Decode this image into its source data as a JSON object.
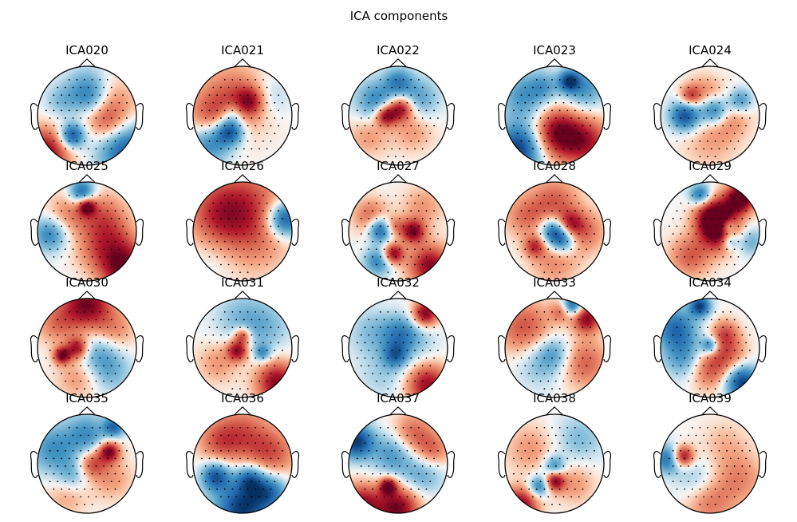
{
  "chart_data": {
    "type": "heatmap",
    "title": "ICA components",
    "components": [
      {
        "label": "ICA020",
        "blobs": [
          [
            -0.85,
            -0.75,
            0.9,
            0.35
          ],
          [
            0.8,
            -0.7,
            -0.8,
            0.4
          ],
          [
            -0.3,
            -0.4,
            -0.9,
            0.18
          ],
          [
            0.0,
            0.6,
            -0.4,
            0.3
          ],
          [
            0.1,
            0.3,
            -0.45,
            0.25
          ],
          [
            0.5,
            0.2,
            0.35,
            0.4
          ],
          [
            0.3,
            0.0,
            0.25,
            0.3
          ],
          [
            -0.5,
            0.3,
            -0.3,
            0.25
          ],
          [
            0.45,
            -0.2,
            0.2,
            0.25
          ]
        ]
      },
      {
        "label": "ICA021",
        "blobs": [
          [
            -0.2,
            0.3,
            0.55,
            0.5
          ],
          [
            0.15,
            0.3,
            0.6,
            0.2
          ],
          [
            -0.25,
            -0.3,
            -0.95,
            0.2
          ],
          [
            -0.65,
            -0.55,
            -0.6,
            0.3
          ],
          [
            -0.2,
            0.05,
            -0.35,
            0.15
          ],
          [
            -0.7,
            0.0,
            0.3,
            0.3
          ],
          [
            0.55,
            0.4,
            -0.25,
            0.3
          ]
        ]
      },
      {
        "label": "ICA022",
        "blobs": [
          [
            0.05,
            0.15,
            0.95,
            0.18
          ],
          [
            -0.25,
            0.0,
            0.9,
            0.15
          ],
          [
            -0.45,
            0.3,
            -0.55,
            0.3
          ],
          [
            0.4,
            0.35,
            -0.45,
            0.3
          ],
          [
            0.0,
            0.7,
            -0.5,
            0.2
          ],
          [
            0.3,
            -0.3,
            0.3,
            0.3
          ],
          [
            -0.6,
            -0.4,
            0.3,
            0.3
          ]
        ]
      },
      {
        "label": "ICA023",
        "blobs": [
          [
            0.05,
            -0.35,
            0.95,
            0.35
          ],
          [
            -0.7,
            -0.65,
            -0.95,
            0.35
          ],
          [
            0.65,
            -0.55,
            0.7,
            0.35
          ],
          [
            -0.6,
            0.4,
            -0.5,
            0.35
          ],
          [
            0.6,
            0.55,
            -0.5,
            0.3
          ],
          [
            0.3,
            0.7,
            -0.8,
            0.15
          ],
          [
            -0.2,
            0.6,
            -0.3,
            0.2
          ]
        ]
      },
      {
        "label": "ICA024",
        "blobs": [
          [
            -0.5,
            0.0,
            -0.9,
            0.22
          ],
          [
            0.1,
            0.1,
            -0.8,
            0.2
          ],
          [
            0.6,
            0.3,
            -0.6,
            0.18
          ],
          [
            -0.4,
            0.4,
            0.6,
            0.15
          ],
          [
            0.4,
            0.0,
            0.35,
            0.3
          ],
          [
            0.0,
            -0.5,
            0.25,
            0.4
          ],
          [
            -0.1,
            0.5,
            0.3,
            0.25
          ]
        ]
      },
      {
        "label": "ICA025",
        "blobs": [
          [
            0.75,
            -0.75,
            0.95,
            0.35
          ],
          [
            0.0,
            0.5,
            0.9,
            0.12
          ],
          [
            -0.1,
            0.8,
            -0.8,
            0.18
          ],
          [
            -0.75,
            -0.05,
            -0.6,
            0.25
          ],
          [
            0.3,
            0.3,
            0.45,
            0.35
          ],
          [
            -0.4,
            0.35,
            0.35,
            0.3
          ],
          [
            0.5,
            -0.2,
            0.4,
            0.35
          ],
          [
            0.1,
            -0.4,
            0.2,
            0.3
          ]
        ]
      },
      {
        "label": "ICA026",
        "blobs": [
          [
            0.85,
            0.25,
            -0.95,
            0.25
          ],
          [
            0.0,
            0.5,
            0.6,
            0.6
          ],
          [
            -0.5,
            0.3,
            0.4,
            0.45
          ],
          [
            0.3,
            -0.3,
            0.2,
            0.5
          ],
          [
            -0.6,
            -0.5,
            -0.1,
            0.4
          ]
        ]
      },
      {
        "label": "ICA027",
        "blobs": [
          [
            -0.35,
            0.05,
            -0.95,
            0.18
          ],
          [
            0.3,
            0.0,
            0.9,
            0.17
          ],
          [
            -0.1,
            -0.45,
            0.95,
            0.15
          ],
          [
            -0.1,
            0.1,
            0.5,
            0.15
          ],
          [
            0.65,
            -0.7,
            0.9,
            0.3
          ],
          [
            -0.55,
            0.3,
            0.5,
            0.25
          ],
          [
            0.5,
            0.5,
            0.3,
            0.3
          ],
          [
            -0.4,
            -0.6,
            -0.6,
            0.2
          ]
        ]
      },
      {
        "label": "ICA028",
        "blobs": [
          [
            0.0,
            0.0,
            -0.95,
            0.2
          ],
          [
            0.2,
            -0.2,
            -0.6,
            0.18
          ],
          [
            0.3,
            0.15,
            0.6,
            0.18
          ],
          [
            -0.4,
            -0.3,
            0.6,
            0.15
          ],
          [
            0.0,
            0.6,
            0.5,
            0.35
          ],
          [
            -0.6,
            0.3,
            0.4,
            0.3
          ],
          [
            0.6,
            0.0,
            0.45,
            0.3
          ],
          [
            0.0,
            -0.6,
            0.35,
            0.35
          ]
        ]
      },
      {
        "label": "ICA029",
        "blobs": [
          [
            0.2,
            0.0,
            0.95,
            0.28
          ],
          [
            0.05,
            0.3,
            0.9,
            0.25
          ],
          [
            0.65,
            0.7,
            0.95,
            0.2
          ],
          [
            0.35,
            0.1,
            -0.7,
            0.12
          ],
          [
            0.4,
            -0.2,
            -0.6,
            0.12
          ],
          [
            -0.4,
            -0.5,
            0.5,
            0.3
          ],
          [
            -0.2,
            0.75,
            -0.7,
            0.15
          ],
          [
            0.8,
            -0.2,
            -0.4,
            0.2
          ],
          [
            0.45,
            0.55,
            0.4,
            0.25
          ]
        ]
      },
      {
        "label": "ICA030",
        "blobs": [
          [
            0.0,
            0.9,
            0.95,
            0.35
          ],
          [
            -0.2,
            0.0,
            0.8,
            0.15
          ],
          [
            -0.5,
            -0.15,
            0.9,
            0.12
          ],
          [
            0.25,
            -0.1,
            -0.4,
            0.3
          ],
          [
            -0.6,
            0.5,
            0.4,
            0.3
          ],
          [
            0.55,
            0.35,
            0.35,
            0.3
          ],
          [
            0.5,
            -0.5,
            -0.3,
            0.3
          ],
          [
            -0.2,
            -0.6,
            0.3,
            0.3
          ]
        ]
      },
      {
        "label": "ICA031",
        "blobs": [
          [
            -0.1,
            -0.05,
            0.9,
            0.15
          ],
          [
            0.0,
            0.25,
            0.7,
            0.12
          ],
          [
            0.7,
            -0.7,
            0.9,
            0.3
          ],
          [
            0.4,
            -0.1,
            -0.5,
            0.12
          ],
          [
            0.0,
            0.6,
            -0.3,
            0.4
          ],
          [
            -0.5,
            -0.3,
            0.3,
            0.3
          ],
          [
            0.5,
            0.4,
            -0.25,
            0.35
          ]
        ]
      },
      {
        "label": "ICA032",
        "blobs": [
          [
            0.55,
            0.7,
            0.95,
            0.18
          ],
          [
            0.6,
            -0.75,
            0.85,
            0.3
          ],
          [
            0.05,
            0.3,
            -0.5,
            0.25
          ],
          [
            -0.05,
            -0.15,
            -0.6,
            0.18
          ],
          [
            -0.5,
            0.3,
            -0.3,
            0.35
          ],
          [
            0.4,
            0.1,
            -0.2,
            0.3
          ],
          [
            -0.3,
            -0.55,
            -0.2,
            0.35
          ]
        ]
      },
      {
        "label": "ICA033",
        "blobs": [
          [
            0.35,
            0.85,
            -0.9,
            0.15
          ],
          [
            0.65,
            0.6,
            0.9,
            0.2
          ],
          [
            -0.6,
            0.4,
            0.55,
            0.4
          ],
          [
            0.6,
            -0.3,
            0.5,
            0.35
          ],
          [
            -0.3,
            -0.3,
            -0.3,
            0.35
          ],
          [
            0.0,
            -0.1,
            -0.4,
            0.25
          ],
          [
            0.15,
            0.75,
            0.5,
            0.15
          ]
        ]
      },
      {
        "label": "ICA034",
        "blobs": [
          [
            0.65,
            -0.7,
            -0.95,
            0.25
          ],
          [
            -0.2,
            0.85,
            -0.9,
            0.15
          ],
          [
            -0.7,
            0.4,
            -0.7,
            0.3
          ],
          [
            0.0,
            -0.4,
            0.6,
            0.3
          ],
          [
            0.3,
            0.3,
            0.5,
            0.2
          ],
          [
            0.0,
            0.05,
            -0.7,
            0.12
          ],
          [
            -0.5,
            -0.2,
            -0.5,
            0.3
          ],
          [
            0.4,
            -0.1,
            0.4,
            0.25
          ]
        ]
      },
      {
        "label": "ICA035",
        "blobs": [
          [
            0.45,
            0.25,
            0.95,
            0.15
          ],
          [
            0.1,
            0.0,
            0.6,
            0.2
          ],
          [
            0.55,
            0.75,
            -0.7,
            0.15
          ],
          [
            -0.7,
            0.3,
            -0.5,
            0.35
          ],
          [
            0.0,
            0.6,
            -0.5,
            0.3
          ],
          [
            -0.3,
            -0.25,
            -0.4,
            0.25
          ],
          [
            0.5,
            -0.3,
            0.3,
            0.3
          ],
          [
            -0.4,
            -0.6,
            0.3,
            0.3
          ]
        ]
      },
      {
        "label": "ICA036",
        "blobs": [
          [
            0.0,
            -0.9,
            -0.95,
            0.4
          ],
          [
            -0.55,
            -0.25,
            -0.8,
            0.2
          ],
          [
            0.15,
            -0.3,
            -0.6,
            0.2
          ],
          [
            0.0,
            0.6,
            0.5,
            0.4
          ],
          [
            0.6,
            0.2,
            0.5,
            0.35
          ],
          [
            -0.5,
            0.45,
            0.4,
            0.3
          ],
          [
            0.55,
            -0.55,
            -0.6,
            0.25
          ]
        ]
      },
      {
        "label": "ICA037",
        "blobs": [
          [
            -0.85,
            0.45,
            -0.95,
            0.25
          ],
          [
            0.0,
            -0.9,
            0.95,
            0.3
          ],
          [
            -0.75,
            -0.85,
            0.9,
            0.3
          ],
          [
            -0.2,
            -0.45,
            0.95,
            0.12
          ],
          [
            0.3,
            0.6,
            0.5,
            0.3
          ],
          [
            -0.1,
            0.2,
            -0.5,
            0.3
          ],
          [
            0.5,
            -0.2,
            -0.4,
            0.3
          ],
          [
            0.7,
            0.25,
            0.45,
            0.25
          ]
        ]
      },
      {
        "label": "ICA038",
        "blobs": [
          [
            -0.7,
            -0.85,
            0.95,
            0.25
          ],
          [
            0.0,
            -0.35,
            0.9,
            0.14
          ],
          [
            -0.3,
            -0.45,
            -0.7,
            0.15
          ],
          [
            0.0,
            -0.05,
            -0.6,
            0.15
          ],
          [
            0.5,
            0.5,
            -0.3,
            0.35
          ],
          [
            -0.5,
            0.3,
            0.3,
            0.35
          ],
          [
            0.4,
            -0.4,
            0.3,
            0.3
          ]
        ]
      },
      {
        "label": "ICA039",
        "blobs": [
          [
            -0.55,
            0.15,
            0.95,
            0.15
          ],
          [
            -0.85,
            0.1,
            -0.7,
            0.2
          ],
          [
            0.0,
            -0.8,
            0.4,
            0.35
          ],
          [
            0.6,
            -0.3,
            0.35,
            0.35
          ],
          [
            -0.3,
            -0.3,
            -0.25,
            0.3
          ],
          [
            0.3,
            0.4,
            0.2,
            0.35
          ]
        ]
      }
    ]
  }
}
